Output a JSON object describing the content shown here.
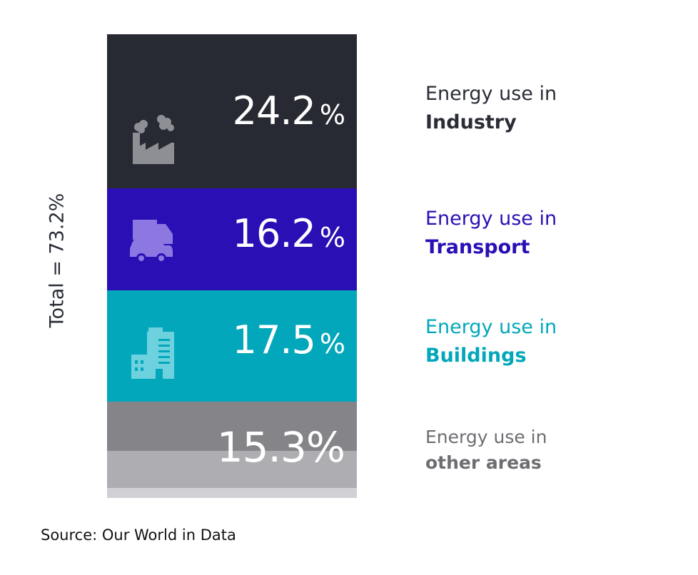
{
  "chart_data": {
    "type": "bar",
    "orientation": "stacked-vertical",
    "total_label": "Total = 73.2%",
    "source": "Source: Our World in Data",
    "segments": [
      {
        "value": 24.2,
        "value_text": "24.2",
        "unit_text": "%",
        "label_line1": "Energy use in",
        "label_line2": "Industry",
        "color": "#272a33",
        "icon": "factory-icon"
      },
      {
        "value": 16.2,
        "value_text": "16.2",
        "unit_text": "%",
        "label_line1": "Energy use in",
        "label_line2": "Transport",
        "color": "#2a0fb5",
        "icon": "vehicles-icon"
      },
      {
        "value": 17.5,
        "value_text": "17.5",
        "unit_text": "%",
        "label_line1": "Energy use in",
        "label_line2": "Buildings",
        "color": "#03a7bb",
        "icon": "buildings-icon"
      },
      {
        "value": 15.3,
        "value_text": "15.3",
        "unit_text": "%",
        "label_line1": "Energy use in",
        "label_line2": "other areas",
        "color": "#858489",
        "icon": "",
        "sub_colors": [
          "#858489",
          "#aeadb1",
          "#d1d0d4"
        ]
      }
    ]
  }
}
